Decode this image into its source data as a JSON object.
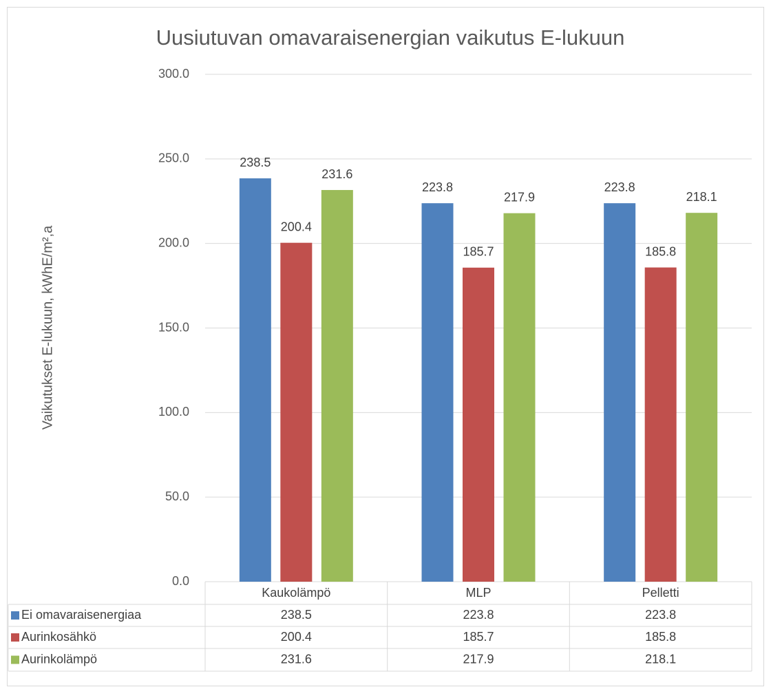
{
  "chart_data": {
    "type": "bar",
    "title": "Uusiutuvan omavaraisenergian vaikutus E-lukuun",
    "y_label": "Vaikutukset E-lukuun, kWhE/m²,a",
    "categories": [
      "Kaukolämpö",
      "MLP",
      "Pelletti"
    ],
    "series": [
      {
        "name": "Ei omavaraisenergiaa",
        "color": "#4f81bd",
        "values": [
          238.5,
          223.8,
          223.8
        ]
      },
      {
        "name": "Aurinkosähkö",
        "color": "#c0504d",
        "values": [
          200.4,
          185.7,
          185.8
        ]
      },
      {
        "name": "Aurinkolämpö",
        "color": "#9bbb59",
        "values": [
          231.6,
          217.9,
          218.1
        ]
      }
    ],
    "ylim": [
      0,
      300
    ],
    "yticks": [
      {
        "value": 0,
        "label": "0.0"
      },
      {
        "value": 50,
        "label": "50.0"
      },
      {
        "value": 100,
        "label": "100.0"
      },
      {
        "value": 150,
        "label": "150.0"
      },
      {
        "value": 200,
        "label": "200.0"
      },
      {
        "value": 250,
        "label": "250.0"
      },
      {
        "value": 300,
        "label": "300.0"
      }
    ],
    "grid": true
  }
}
